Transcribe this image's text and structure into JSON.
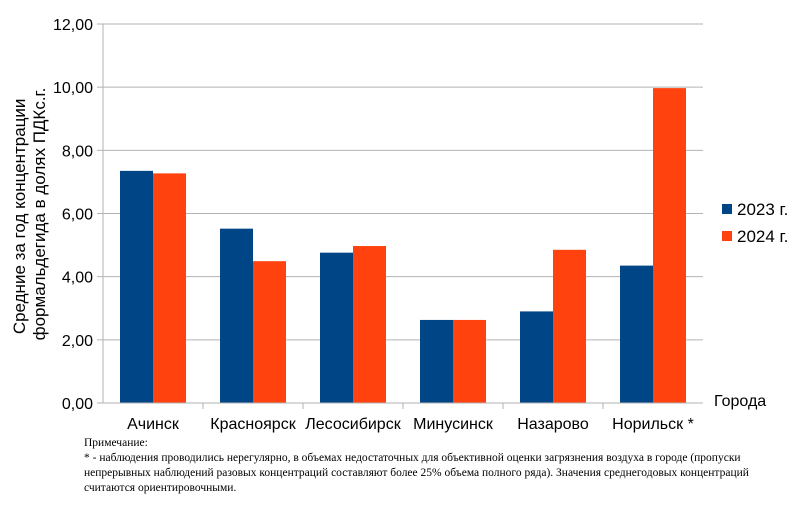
{
  "chart_data": {
    "type": "bar",
    "title": "",
    "ylabel_lines": [
      "Средние за год концентрации",
      "формальдегида в долях ПДКс.г."
    ],
    "xlabel": "Города",
    "ylim": [
      0,
      12
    ],
    "yticks": [
      "0,00",
      "2,00",
      "4,00",
      "6,00",
      "8,00",
      "10,00",
      "12,00"
    ],
    "categories": [
      "Ачинск",
      "Красноярск",
      "Лесосибирск",
      "Минусинск",
      "Назарово",
      "Норильск *"
    ],
    "series": [
      {
        "name": "2023 г.",
        "color": "#004586",
        "values": [
          7.35,
          5.52,
          4.76,
          2.63,
          2.9,
          4.35
        ]
      },
      {
        "name": "2024 г.",
        "color": "#ff420e",
        "values": [
          7.27,
          4.49,
          4.97,
          2.63,
          4.85,
          9.97
        ]
      }
    ],
    "grid": "horizontal",
    "legend_position": "right"
  },
  "note": {
    "line1": "Примечание:",
    "line2": "* - наблюдения проводились нерегулярно, в объемах недостаточных для объективной оценки загрязнения воздуха в городе (пропуски непрерывных наблюдений разовых концентраций составляют более 25% объема полного ряда). Значения среднегодовых концентраций считаются ориентировочными."
  }
}
